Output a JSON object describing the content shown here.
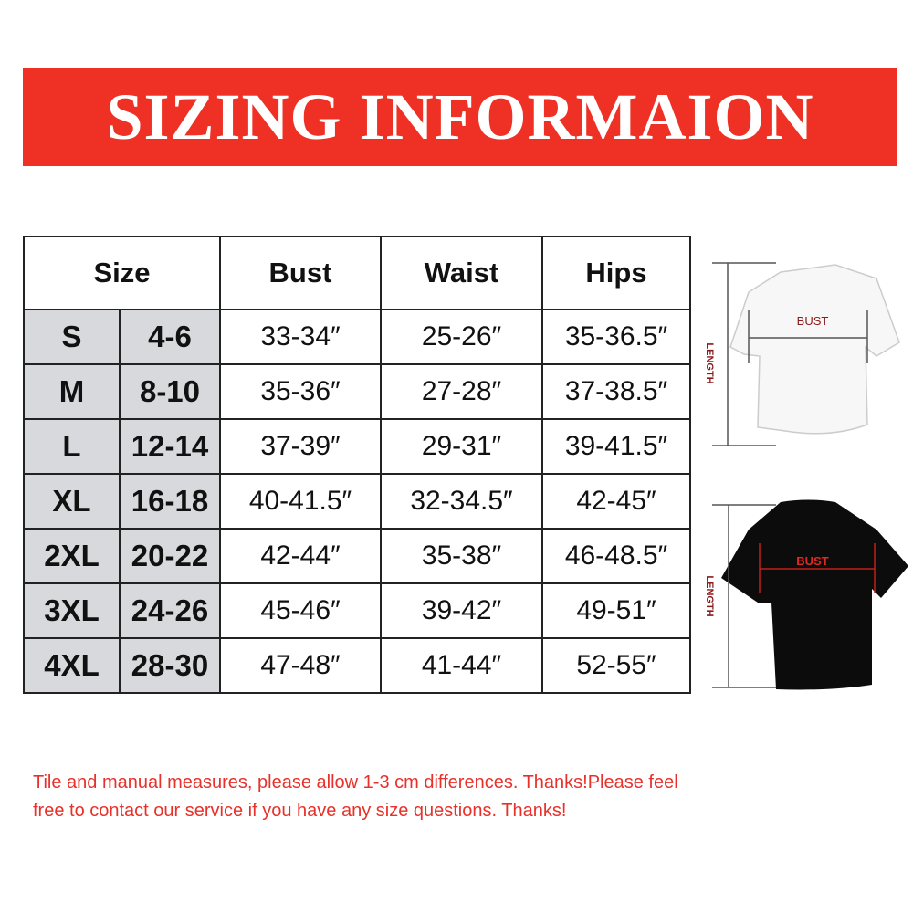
{
  "title": "SIZING INFORMAION",
  "table": {
    "headers": {
      "size": "Size",
      "bust": "Bust",
      "waist": "Waist",
      "hips": "Hips"
    },
    "rows": [
      {
        "size": "S",
        "us": "4-6",
        "bust": "33-34″",
        "waist": "25-26″",
        "hips": "35-36.5″"
      },
      {
        "size": "M",
        "us": "8-10",
        "bust": "35-36″",
        "waist": "27-28″",
        "hips": "37-38.5″"
      },
      {
        "size": "L",
        "us": "12-14",
        "bust": "37-39″",
        "waist": "29-31″",
        "hips": "39-41.5″"
      },
      {
        "size": "XL",
        "us": "16-18",
        "bust": "40-41.5″",
        "waist": "32-34.5″",
        "hips": "42-45″"
      },
      {
        "size": "2XL",
        "us": "20-22",
        "bust": "42-44″",
        "waist": "35-38″",
        "hips": "46-48.5″"
      },
      {
        "size": "3XL",
        "us": "24-26",
        "bust": "45-46″",
        "waist": "39-42″",
        "hips": "49-51″"
      },
      {
        "size": "4XL",
        "us": "28-30",
        "bust": "47-48″",
        "waist": "41-44″",
        "hips": "52-55″"
      }
    ]
  },
  "diagrams": {
    "white_shirt": {
      "bust_label": "BUST",
      "length_label": "LENGTH"
    },
    "black_shirt": {
      "bust_label": "BUST",
      "length_label": "LENGTH"
    }
  },
  "note": {
    "line1": "Tile and manual measures, please allow 1-3 cm differences. Thanks!Please feel",
    "line2": "free to contact our service if you have any size questions. Thanks!"
  },
  "colors": {
    "banner": "#ee3124",
    "note": "#e8312a",
    "size_column_bg": "#d7d9dc",
    "label_dark_red": "#8b1a1a"
  }
}
